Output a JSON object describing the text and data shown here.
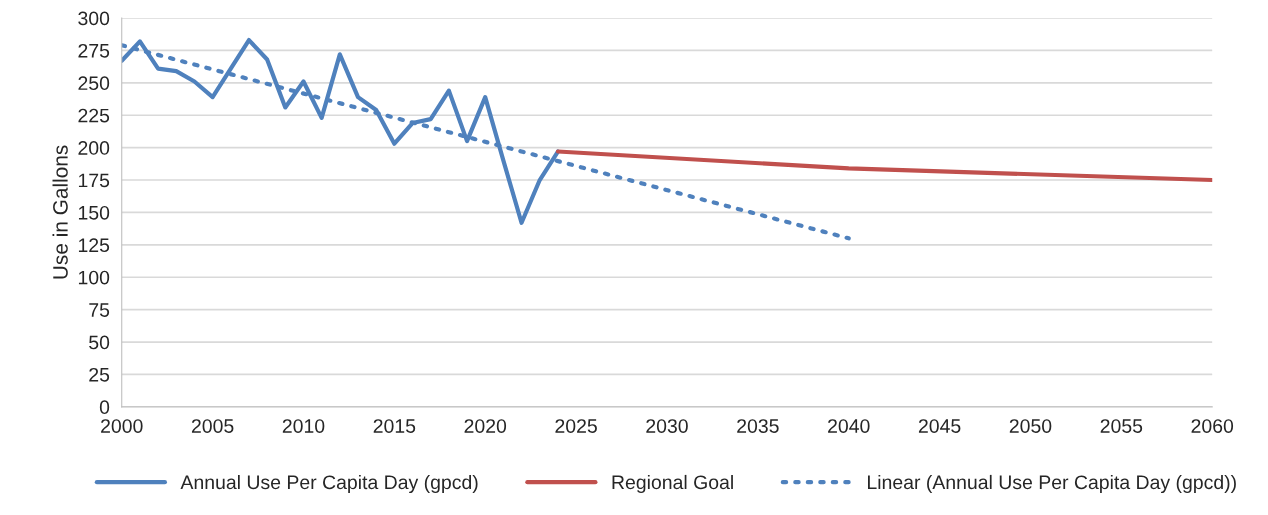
{
  "chart_data": {
    "type": "line",
    "ylabel": "Use in Gallons",
    "xlim": [
      2000,
      2060
    ],
    "xticks": [
      2000,
      2005,
      2010,
      2015,
      2020,
      2025,
      2030,
      2035,
      2040,
      2045,
      2050,
      2055,
      2060
    ],
    "ylim": [
      0,
      300
    ],
    "yticks": [
      0,
      25,
      50,
      75,
      100,
      125,
      150,
      175,
      200,
      225,
      250,
      275,
      300
    ],
    "grid": "y",
    "legend": "bottom",
    "marker": "none",
    "series": [
      {
        "name": "Annual Use Per Capita Day (gpcd)",
        "color": "#4f81bd",
        "line_style": "solid",
        "x": [
          2000,
          2001,
          2002,
          2003,
          2004,
          2005,
          2006,
          2007,
          2008,
          2009,
          2010,
          2011,
          2012,
          2013,
          2014,
          2015,
          2016,
          2017,
          2018,
          2019,
          2020,
          2021,
          2022,
          2023,
          2024
        ],
        "values": [
          267,
          282,
          261,
          259,
          251,
          239,
          261,
          283,
          268,
          231,
          251,
          223,
          272,
          239,
          229,
          203,
          219,
          222,
          244,
          205,
          239,
          190,
          142,
          175,
          197
        ]
      },
      {
        "name": "Regional Goal",
        "color": "#c0504d",
        "line_style": "solid",
        "x": [
          2024,
          2040,
          2060
        ],
        "values": [
          197,
          184,
          175
        ]
      },
      {
        "name": "Linear (Annual Use Per Capita Day (gpcd))",
        "color": "#4f81bd",
        "line_style": "dotted",
        "x": [
          2000,
          2040
        ],
        "values": [
          279,
          130
        ]
      }
    ]
  }
}
